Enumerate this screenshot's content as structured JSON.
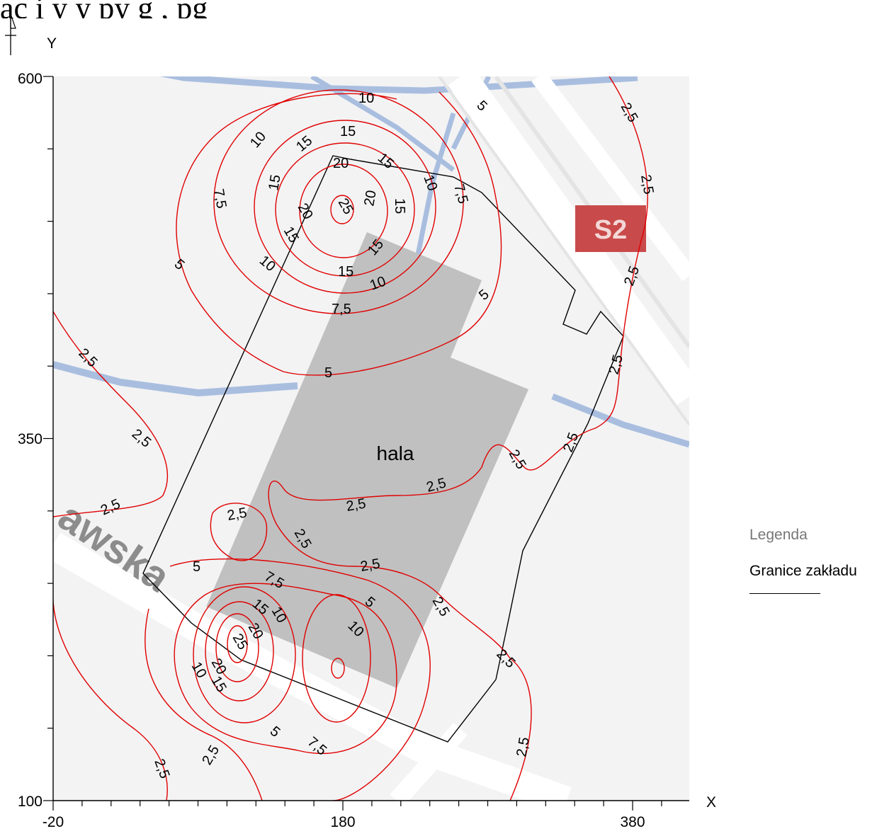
{
  "caption": "ąc  i               y    y py                     g    ,  pg",
  "map": {
    "street_label": "awska",
    "road_badge": "S2",
    "badge_color": "#c94a4a",
    "building_label": "hala",
    "building_color": "#c0c0c0",
    "isoline_color": "#e00000"
  },
  "axes": {
    "x_label": "X",
    "y_label": "Y",
    "x_ticks": [
      "-20",
      "180",
      "380"
    ],
    "y_ticks": [
      "600",
      "350",
      "100"
    ]
  },
  "legend": {
    "title": "Legenda",
    "item": "Granice zakładu"
  },
  "isoline_labels": {
    "l01": "10",
    "l02": "5",
    "l03": "2,5",
    "l04": "15",
    "l05": "10",
    "l06": "15",
    "l07": "20",
    "l08": "15",
    "l09": "10",
    "l10": "7,5",
    "l11": "2,5",
    "l12": "7,5",
    "l13": "15",
    "l14": "25",
    "l15": "20",
    "l16": "15",
    "l17": "20",
    "l18": "15",
    "l19": "10",
    "l20": "15",
    "l21": "5",
    "l22": "15",
    "l23": "10",
    "l24": "7,5",
    "l25": "2,5",
    "l26": "5",
    "l27": "5",
    "l28": "2,5",
    "l29": "2,5",
    "l30": "2,5",
    "l31": "2,5",
    "l32": "2,5",
    "l33": "2,5",
    "l34": "2,5",
    "l35": "2,5",
    "l36": "2,5",
    "l37": "5",
    "l38": "2,5",
    "l39": "7,5",
    "l40": "15",
    "l41": "10",
    "l42": "5",
    "l43": "20",
    "l44": "25",
    "l45": "10",
    "l46": "2,5",
    "l47": "10",
    "l48": "20",
    "l49": "15",
    "l50": "2,5",
    "l51": "2,5",
    "l52": "5",
    "l53": "7,5",
    "l54": "2,5",
    "l55": "2,5"
  }
}
